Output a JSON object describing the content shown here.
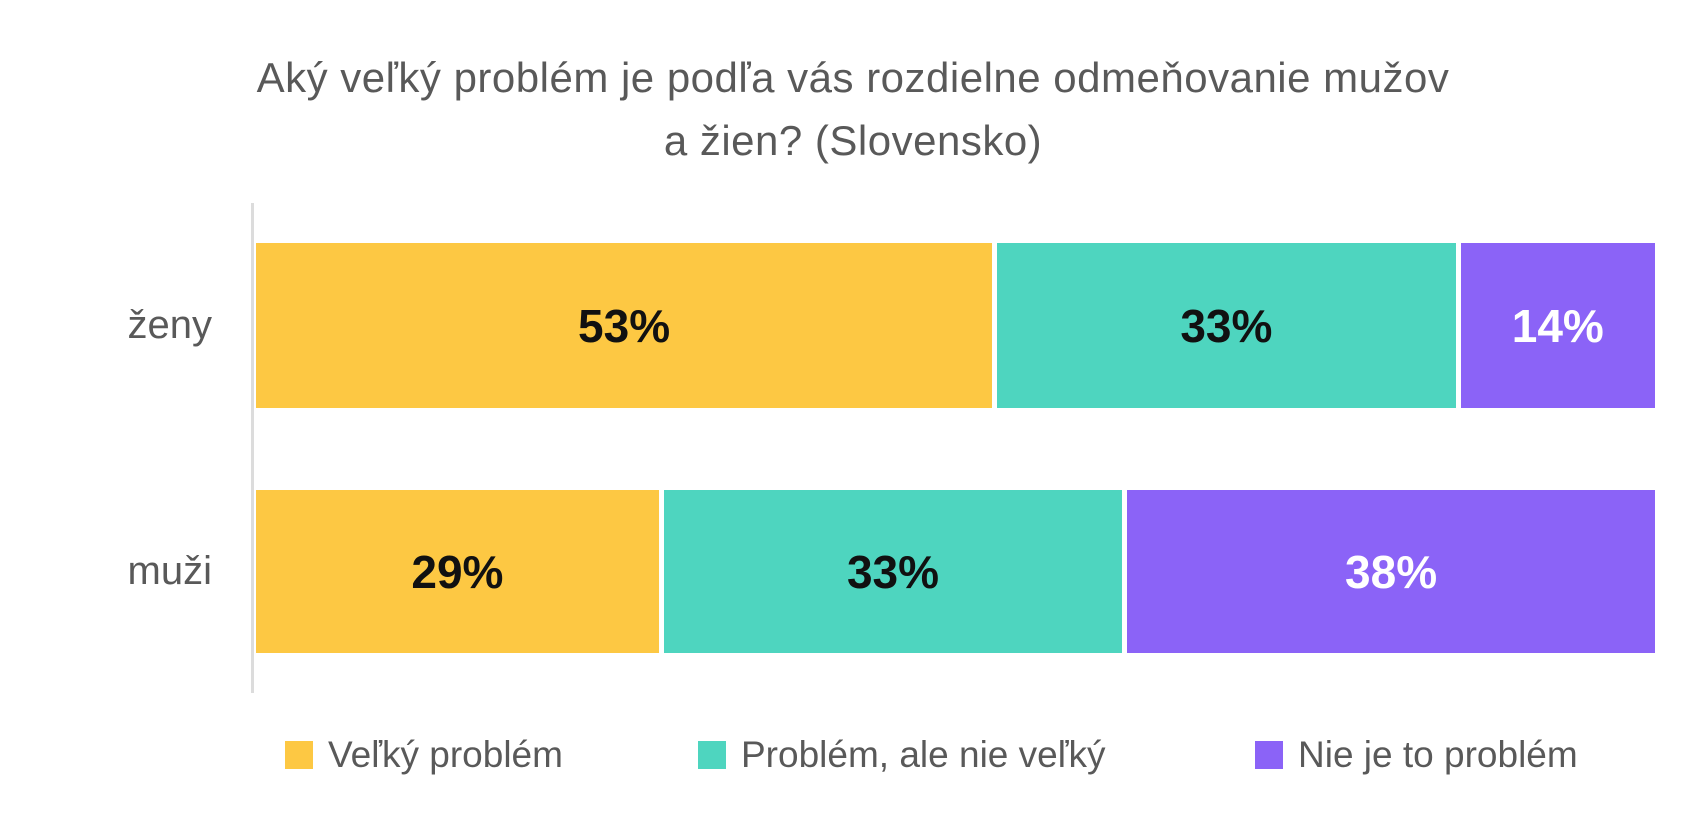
{
  "title": {
    "line1": "Aký veľký problém je podľa vás rozdielne odmeňovanie mužov",
    "line2": "a žien? (Slovensko)"
  },
  "colors": {
    "background": "#FFFFFF",
    "title_text": "#595959",
    "category_text": "#595959",
    "legend_text": "#595959",
    "axis_line": "#DCDCDC",
    "velky_problem": "#FDC843",
    "problem_ale_nie_velky": "#4ED5BF",
    "nie_je_to_problem": "#8B63F7"
  },
  "chart_data": {
    "type": "bar",
    "orientation": "horizontal",
    "stacked": true,
    "title": "Aký veľký problém je podľa vás rozdielne odmeňovanie mužov a žien? (Slovensko)",
    "categories": [
      "ženy",
      "muži"
    ],
    "series": [
      {
        "name": "Veľký problém",
        "color": "#FDC843",
        "label_color": "#111111",
        "values": [
          53,
          29
        ]
      },
      {
        "name": "Problém, ale nie veľký",
        "color": "#4ED5BF",
        "label_color": "#111111",
        "values": [
          33,
          33
        ]
      },
      {
        "name": "Nie je to problém",
        "color": "#8B63F7",
        "label_color": "#FFFFFF",
        "values": [
          14,
          38
        ]
      }
    ],
    "value_labels": [
      [
        "53%",
        "33%",
        "14%"
      ],
      [
        "29%",
        "33%",
        "38%"
      ]
    ],
    "xlim": [
      0,
      100
    ],
    "grid": false,
    "legend_position": "bottom"
  },
  "legend": {
    "items": [
      {
        "label": "Veľký problém",
        "color": "#FDC843"
      },
      {
        "label": "Problém, ale nie veľký",
        "color": "#4ED5BF"
      },
      {
        "label": "Nie je to problém",
        "color": "#8B63F7"
      }
    ]
  }
}
